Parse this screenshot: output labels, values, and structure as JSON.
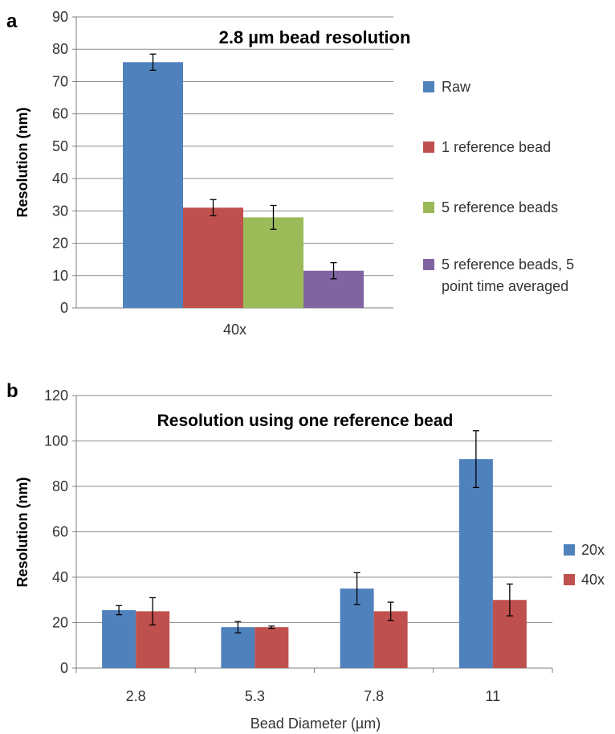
{
  "chart_data": [
    {
      "panel_label": "a",
      "type": "bar",
      "title": "2.8 µm bead resolution",
      "xlabel": "",
      "ylabel": "Resolution (nm)",
      "ylim": [
        0,
        90
      ],
      "yticks": [
        0,
        10,
        20,
        30,
        40,
        50,
        60,
        70,
        80,
        90
      ],
      "categories": [
        "40x"
      ],
      "grid": true,
      "legend_position": "right",
      "series": [
        {
          "name": "Raw",
          "color": "#4f81bd",
          "values": [
            76
          ],
          "errors": [
            2.5
          ]
        },
        {
          "name": "1 reference bead",
          "color": "#c0504d",
          "values": [
            31
          ],
          "errors": [
            2.5
          ]
        },
        {
          "name": "5 reference beads",
          "color": "#9bbb59",
          "values": [
            28
          ],
          "errors": [
            3.7
          ]
        },
        {
          "name": "5 reference beads, 5 point time averaged",
          "legend_lines": [
            "5 reference beads, 5",
            "point time averaged"
          ],
          "color": "#8064a2",
          "values": [
            11.5
          ],
          "errors": [
            2.5
          ]
        }
      ]
    },
    {
      "panel_label": "b",
      "type": "bar",
      "title": "Resolution using one reference bead",
      "xlabel": "Bead Diameter (µm)",
      "ylabel": "Resolution (nm)",
      "ylim": [
        0,
        120
      ],
      "yticks": [
        0,
        20,
        40,
        60,
        80,
        100,
        120
      ],
      "categories": [
        "2.8",
        "5.3",
        "7.8",
        "11"
      ],
      "grid": true,
      "legend_position": "right",
      "series": [
        {
          "name": "20x",
          "color": "#4f81bd",
          "values": [
            25.5,
            18,
            35,
            92
          ],
          "errors": [
            2,
            2.5,
            7,
            12.5
          ]
        },
        {
          "name": "40x",
          "color": "#c0504d",
          "values": [
            25,
            18,
            25,
            30
          ],
          "errors": [
            6,
            0.5,
            4,
            7
          ]
        }
      ]
    }
  ]
}
